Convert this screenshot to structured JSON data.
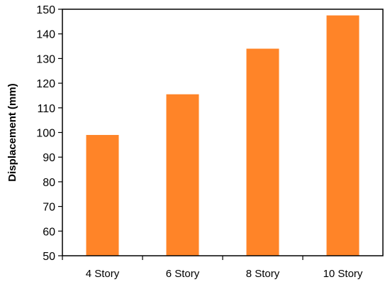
{
  "chart_data": {
    "type": "bar",
    "title": "",
    "xlabel": "",
    "ylabel": "Displacement (mm)",
    "categories": [
      "4 Story",
      "6 Story",
      "8 Story",
      "10 Story"
    ],
    "values": [
      99,
      115.5,
      134,
      147.5
    ],
    "ylim": [
      50,
      150
    ],
    "yticks": [
      50,
      60,
      70,
      80,
      90,
      100,
      110,
      120,
      130,
      140,
      150
    ],
    "grid": false,
    "legend": "none",
    "bar_color": "#FF8428"
  }
}
